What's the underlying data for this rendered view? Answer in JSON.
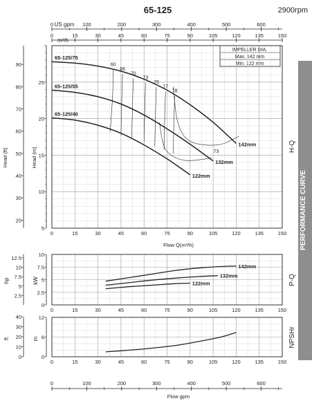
{
  "header": {
    "model": "65-125",
    "speed": "2900rpm"
  },
  "side_banner": "PERFORMANCE CURVE",
  "chart_data": [
    {
      "type": "line",
      "name": "H-Q",
      "panel_label": "H-Q",
      "x_label": "Flow Q(m³/h)",
      "x_ticks": [
        0,
        15,
        30,
        45,
        60,
        75,
        90,
        105,
        120,
        135,
        150
      ],
      "xlim": [
        0,
        150
      ],
      "top_axis_m3h_label": "m³/h",
      "top_axis_m3h_ticks": [
        0,
        15,
        30,
        45,
        60,
        75,
        90,
        105,
        120,
        135,
        150
      ],
      "top_axis_usgpm_label": "US gpm",
      "top_axis_usgpm_ticks": [
        0,
        100,
        200,
        300,
        400,
        500,
        600
      ],
      "y_label_m": "Head (m)",
      "y_ticks_m": [
        10,
        15,
        20,
        25
      ],
      "ylim_m": [
        5,
        30
      ],
      "y_label_ft": "Head (ft)",
      "y_ticks_ft": [
        20,
        30,
        40,
        50,
        60,
        70,
        80,
        90
      ],
      "impeller_box": {
        "title": "IMPELLER DIA.",
        "max": "Max.  142 mm",
        "min": "Min.   122 mm"
      },
      "series": [
        {
          "name": "142mm",
          "top_label": "65-125/75",
          "x": [
            0,
            15,
            30,
            45,
            60,
            75,
            90,
            105,
            120
          ],
          "y": [
            27.8,
            27.6,
            27.2,
            26.5,
            25.4,
            23.9,
            21.9,
            19.5,
            16.6
          ]
        },
        {
          "name": "132mm",
          "top_label": "65-125/55",
          "x": [
            0,
            15,
            30,
            45,
            60,
            75,
            90,
            105
          ],
          "y": [
            23.9,
            23.6,
            23.0,
            22.0,
            20.5,
            18.6,
            16.5,
            14.2
          ]
        },
        {
          "name": "122mm",
          "top_label": "65-125/40",
          "x": [
            0,
            15,
            30,
            45,
            60,
            75,
            90
          ],
          "y": [
            20.1,
            19.8,
            19.1,
            18.0,
            16.4,
            14.5,
            12.3
          ]
        }
      ],
      "efficiency_labels": [
        "60",
        "66",
        "70",
        "73",
        "75",
        "77",
        "78",
        "73"
      ]
    },
    {
      "type": "line",
      "name": "P-Q",
      "panel_label": "P-Q",
      "x_ticks": [
        0,
        15,
        30,
        45,
        60,
        75,
        90,
        105,
        120,
        135,
        150
      ],
      "xlim": [
        0,
        150
      ],
      "y_label_kw": "kW",
      "y_ticks_kw": [
        0,
        2.5,
        5,
        7.5,
        10
      ],
      "ylim_kw": [
        0,
        10
      ],
      "y_label_hp": "hp",
      "y_ticks_hp": [
        2.5,
        5,
        7.5,
        10,
        12.5
      ],
      "series": [
        {
          "name": "142mm",
          "x": [
            35,
            50,
            65,
            80,
            95,
            110,
            120
          ],
          "y": [
            4.7,
            5.4,
            6.1,
            6.8,
            7.3,
            7.6,
            7.7
          ]
        },
        {
          "name": "132mm",
          "x": [
            35,
            50,
            65,
            80,
            95,
            108
          ],
          "y": [
            3.9,
            4.4,
            4.9,
            5.3,
            5.6,
            5.8
          ]
        },
        {
          "name": "122mm",
          "x": [
            35,
            50,
            65,
            80,
            90
          ],
          "y": [
            3.2,
            3.6,
            3.9,
            4.2,
            4.3
          ]
        }
      ]
    },
    {
      "type": "line",
      "name": "NPSHr",
      "panel_label": "NPSHr",
      "x_ticks": [
        0,
        15,
        30,
        45,
        60,
        75,
        90,
        105,
        120,
        135,
        150
      ],
      "xlim": [
        0,
        150
      ],
      "y_label_m": "m",
      "y_ticks_m": [
        0,
        6,
        12
      ],
      "ylim_m": [
        0,
        12
      ],
      "y_label_ft": "ft",
      "y_ticks_ft": [
        0,
        10,
        20,
        30,
        40
      ],
      "series": [
        {
          "name": "NPSHr",
          "x": [
            35,
            50,
            65,
            80,
            95,
            110,
            120
          ],
          "y": [
            1.5,
            2.0,
            2.6,
            3.4,
            4.6,
            6.0,
            7.4
          ]
        }
      ]
    }
  ],
  "bottom_axis": {
    "label": "Flow gpm",
    "ticks": [
      0,
      100,
      200,
      300,
      400,
      500,
      600
    ]
  }
}
